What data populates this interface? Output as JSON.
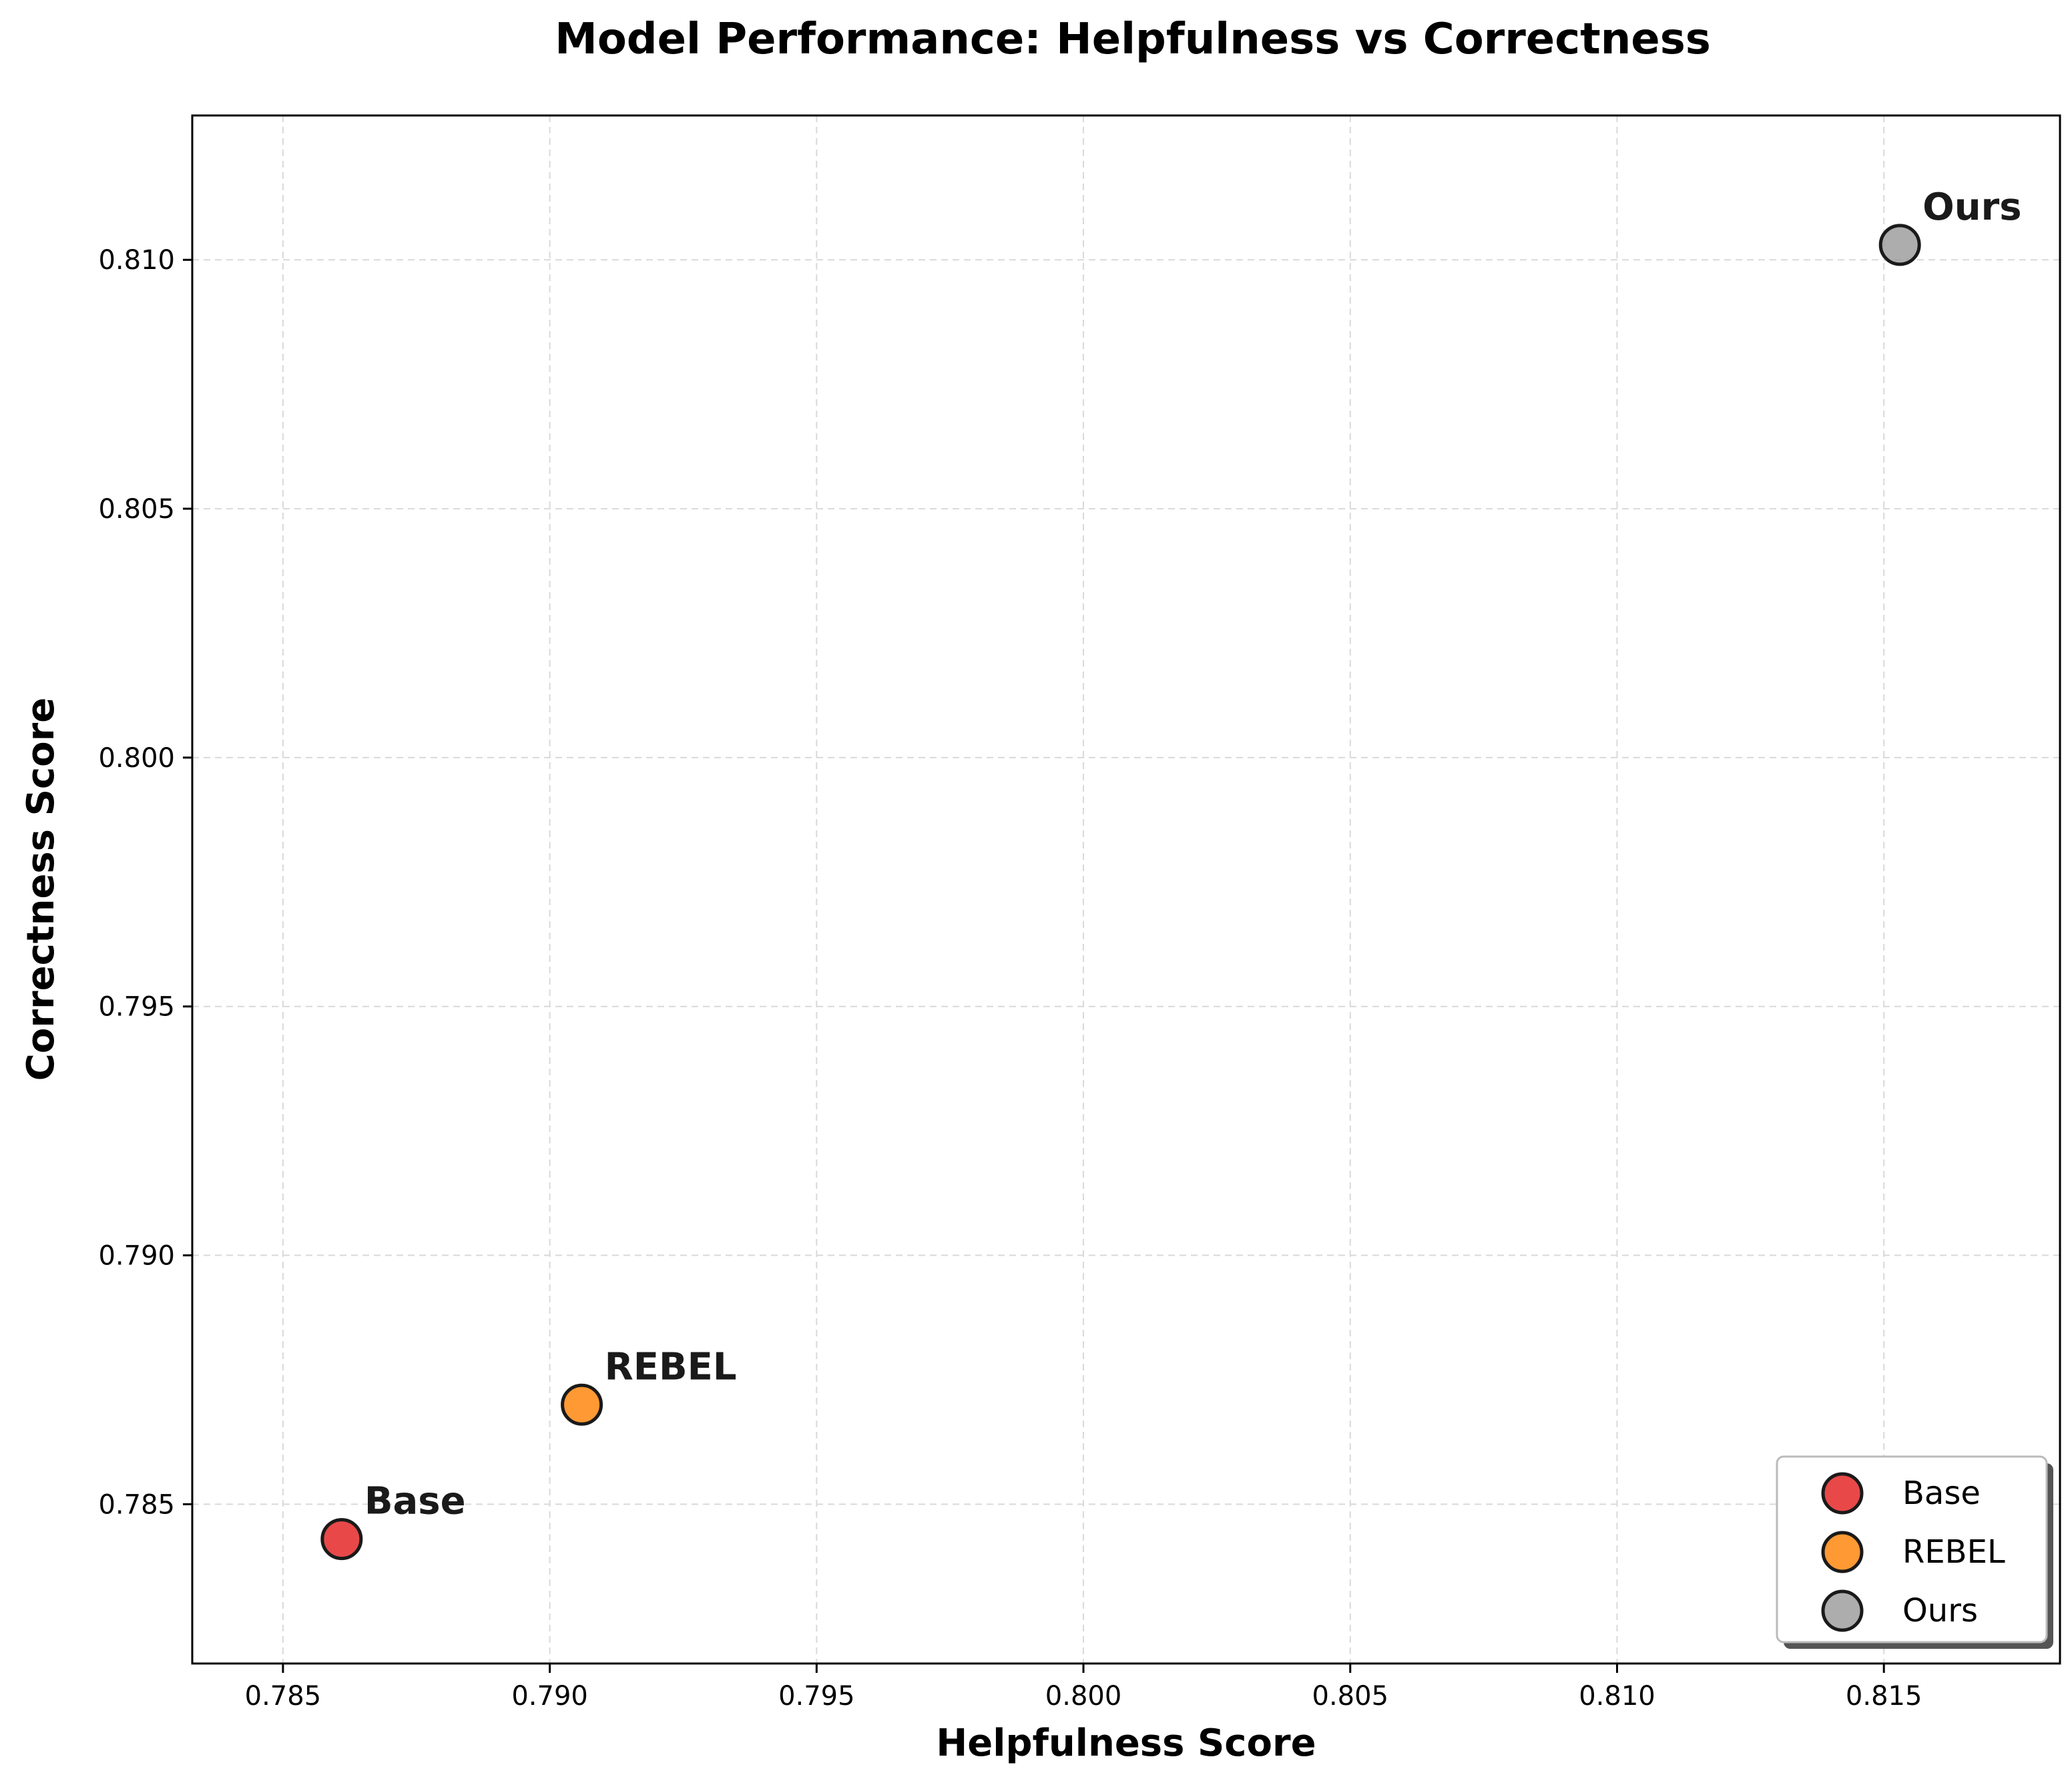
{
  "chart_data": {
    "type": "scatter",
    "title": "Model Performance: Helpfulness vs Correctness",
    "xlabel": "Helpfulness Score",
    "ylabel": "Correctness Score",
    "xlim": [
      0.7833,
      0.8183
    ],
    "ylim": [
      0.7818,
      0.8129
    ],
    "xticks": [
      0.785,
      0.79,
      0.795,
      0.8,
      0.805,
      0.81,
      0.815
    ],
    "xtick_labels": [
      "0.785",
      "0.790",
      "0.795",
      "0.800",
      "0.805",
      "0.810",
      "0.815"
    ],
    "yticks": [
      0.785,
      0.79,
      0.795,
      0.8,
      0.805,
      0.81
    ],
    "ytick_labels": [
      "0.785",
      "0.790",
      "0.795",
      "0.800",
      "0.805",
      "0.810"
    ],
    "grid": true,
    "legend_position": "bottom-right",
    "series": [
      {
        "name": "Base",
        "x": 0.7861,
        "y": 0.7843,
        "color": "#e41a1c"
      },
      {
        "name": "REBEL",
        "x": 0.7906,
        "y": 0.787,
        "color": "#ff7f00"
      },
      {
        "name": "Ours",
        "x": 0.8153,
        "y": 0.8103,
        "color": "#999999"
      }
    ]
  }
}
